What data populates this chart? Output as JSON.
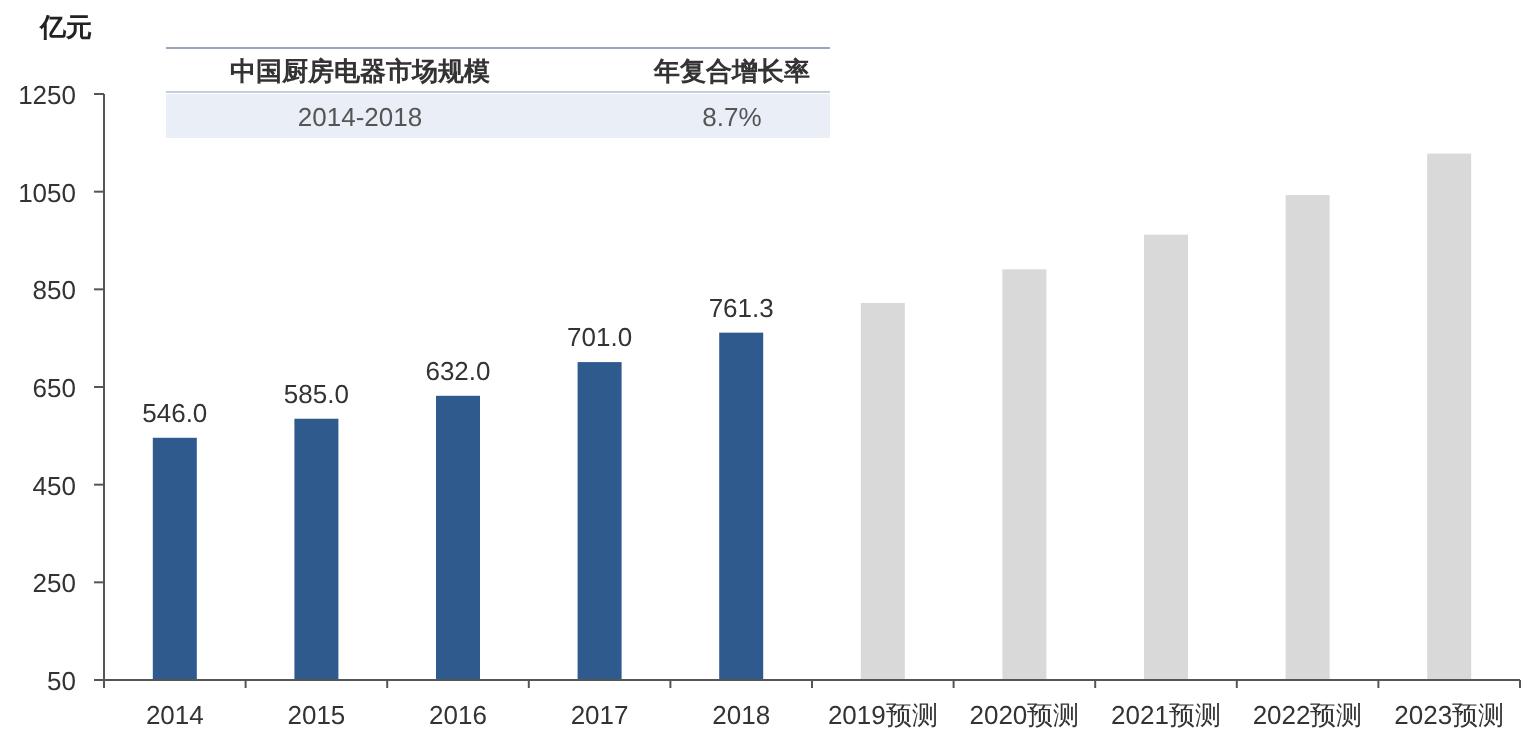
{
  "chart_data": {
    "type": "bar",
    "ylabel": "亿元",
    "categories": [
      "2014",
      "2015",
      "2016",
      "2017",
      "2018",
      "2019预测",
      "2020预测",
      "2021预测",
      "2022预测",
      "2023预测"
    ],
    "values": [
      546.0,
      585.0,
      632.0,
      701.0,
      761.3,
      822,
      891,
      962,
      1043,
      1128
    ],
    "colors": [
      "#2f5a8e",
      "#2f5a8e",
      "#2f5a8e",
      "#2f5a8e",
      "#2f5a8e",
      "#d9d9d9",
      "#d9d9d9",
      "#d9d9d9",
      "#d9d9d9",
      "#d9d9d9"
    ],
    "value_labels": [
      "546.0",
      "585.0",
      "632.0",
      "701.0",
      "761.3",
      null,
      null,
      null,
      null,
      null
    ],
    "ylim": [
      50,
      1250
    ],
    "yticks": [
      50,
      250,
      450,
      650,
      850,
      1050,
      1250
    ],
    "annotations": [
      "中国厨房电器市场规模",
      "年复合增长率",
      "2014-2018",
      "8.7%"
    ],
    "grid": false
  }
}
